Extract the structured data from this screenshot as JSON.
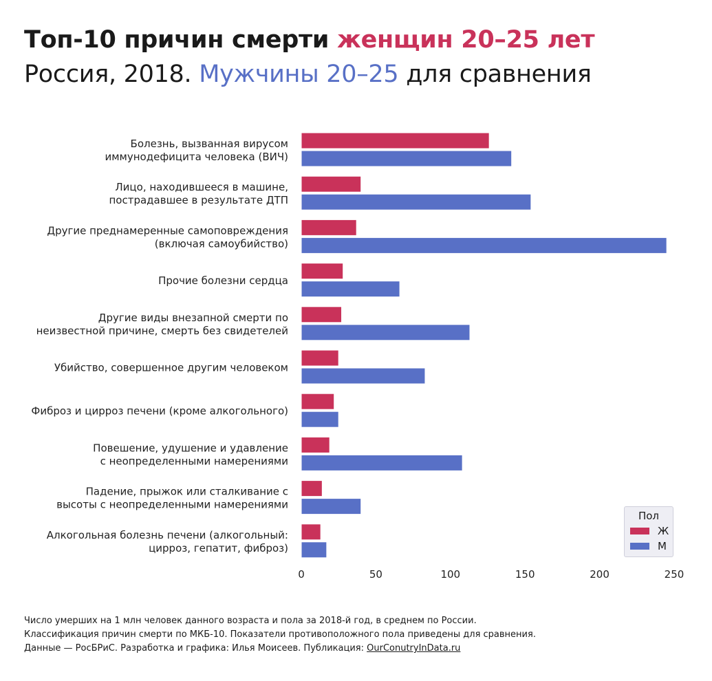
{
  "header": {
    "title_main": "Топ-10 причин смерти ",
    "title_accent": "женщин 20–25 лет",
    "subtitle_main": "Россия, 2018. ",
    "subtitle_accent": "Мужчины 20–25",
    "subtitle_rest": " для сравнения"
  },
  "colors": {
    "female": "#c9325a",
    "male": "#5870c6"
  },
  "legend": {
    "title": "Пол",
    "items": [
      {
        "label": "Ж",
        "color": "#c9325a"
      },
      {
        "label": "М",
        "color": "#5870c6"
      }
    ]
  },
  "chart_data": {
    "type": "bar",
    "orientation": "horizontal",
    "categories": [
      [
        "Болезнь, вызванная вирусом",
        "иммунодефицита человека (ВИЧ)"
      ],
      [
        "Лицо, находившееся в машине,",
        "пострадавшее в результате ДТП"
      ],
      [
        "Другие преднамеренные самоповреждения",
        "(включая самоубийство)"
      ],
      [
        "Прочие болезни сердца"
      ],
      [
        "Другие виды внезапной смерти по",
        "неизвестной причине, смерть без свидетелей"
      ],
      [
        "Убийство, совершенное другим человеком"
      ],
      [
        "Фиброз и цирроз печени (кроме алкогольного)"
      ],
      [
        "Повешение, удушение и удавление",
        "с неопределенными намерениями"
      ],
      [
        "Падение, прыжок или сталкивание с",
        "высоты с неопределенными намерениями"
      ],
      [
        "Алкогольная болезнь печени (алкогольный:",
        "цирроз, гепатит, фиброз)"
      ]
    ],
    "series": [
      {
        "name": "Ж",
        "values": [
          126,
          40,
          37,
          28,
          27,
          25,
          22,
          19,
          14,
          13
        ]
      },
      {
        "name": "М",
        "values": [
          141,
          154,
          245,
          66,
          113,
          83,
          25,
          108,
          40,
          17
        ]
      }
    ],
    "xlim": [
      0,
      250
    ],
    "xticks": [
      0,
      50,
      100,
      150,
      200,
      250
    ],
    "grid": false,
    "legend_position": "bottom-right"
  },
  "footer": {
    "line1": "Число умерших на 1 млн человек данного возраста и пола за 2018-й год, в среднем по России.",
    "line2": "Классификация причин смерти по МКБ-10. Показатели противоположного пола приведены для сравнения.",
    "line3_prefix": "Данные — РосБРиС. Разработка и графика: Илья Моисеев. Публикация: ",
    "line3_link": "OurConutryInData.ru"
  }
}
